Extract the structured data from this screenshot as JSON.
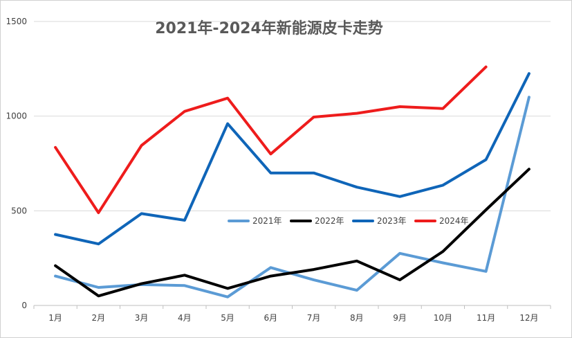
{
  "chart_data": {
    "type": "line",
    "title": "2021年-2024年新能源皮卡走势",
    "xlabel": "",
    "ylabel": "",
    "categories": [
      "1月",
      "2月",
      "3月",
      "4月",
      "5月",
      "6月",
      "7月",
      "8月",
      "9月",
      "10月",
      "11月",
      "12月"
    ],
    "ylim": [
      0,
      1500
    ],
    "yticks": [
      "0",
      "500",
      "1000",
      "1500"
    ],
    "grid": true,
    "legend_position": "center",
    "series": [
      {
        "name": "2021年",
        "color": "#5B9BD5",
        "values": [
          155,
          95,
          110,
          105,
          45,
          200,
          135,
          80,
          275,
          225,
          180,
          1100
        ]
      },
      {
        "name": "2022年",
        "color": "#000000",
        "values": [
          210,
          50,
          115,
          160,
          90,
          155,
          190,
          235,
          135,
          285,
          505,
          720
        ]
      },
      {
        "name": "2023年",
        "color": "#0F65B8",
        "values": [
          375,
          325,
          485,
          450,
          960,
          700,
          700,
          625,
          575,
          635,
          770,
          1225
        ]
      },
      {
        "name": "2024年",
        "color": "#EE1C1C",
        "values": [
          835,
          490,
          845,
          1025,
          1095,
          800,
          995,
          1015,
          1050,
          1040,
          1260,
          null
        ]
      }
    ]
  }
}
